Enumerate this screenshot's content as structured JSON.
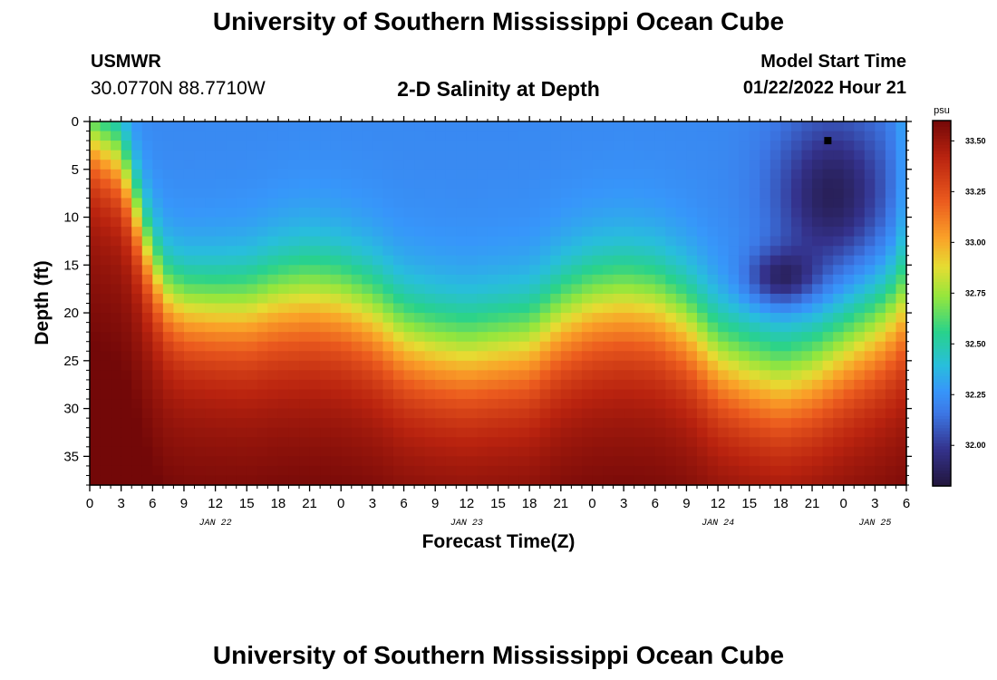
{
  "header": {
    "title": "University of Southern Mississippi Ocean Cube",
    "station": "USMWR",
    "coordinates": "30.0770N  88.7710W",
    "subtitle": "2-D Salinity at Depth",
    "model_start_label": "Model Start Time",
    "model_start_value": "01/22/2022 Hour 21"
  },
  "footer": {
    "title": "University of Southern Mississippi Ocean Cube"
  },
  "chart_data": {
    "type": "heatmap",
    "title": "2-D Salinity at Depth",
    "xlabel": "Forecast Time(Z)",
    "ylabel": "Depth (ft)",
    "x_unit": "hours from Jan 22 00Z",
    "xlim": [
      0,
      78
    ],
    "ylim": [
      0,
      38
    ],
    "y_inverted": true,
    "x_ticks": [
      0,
      3,
      6,
      9,
      12,
      15,
      18,
      21,
      24,
      27,
      30,
      33,
      36,
      39,
      42,
      45,
      48,
      51,
      54,
      57,
      60,
      63,
      66,
      69,
      72,
      75,
      78
    ],
    "x_tick_labels": [
      "0",
      "3",
      "6",
      "9",
      "12",
      "15",
      "18",
      "21",
      "0",
      "3",
      "6",
      "9",
      "12",
      "15",
      "18",
      "21",
      "0",
      "3",
      "6",
      "9",
      "12",
      "15",
      "18",
      "21",
      "0",
      "3",
      "6"
    ],
    "y_ticks": [
      0,
      5,
      10,
      15,
      20,
      25,
      30,
      35
    ],
    "y_tick_labels": [
      "0",
      "5",
      "10",
      "15",
      "20",
      "25",
      "30",
      "35"
    ],
    "date_labels": [
      {
        "hour": 12,
        "text": "JAN 22"
      },
      {
        "hour": 36,
        "text": "JAN 23"
      },
      {
        "hour": 60,
        "text": "JAN 24"
      },
      {
        "hour": 75,
        "text": "JAN 25"
      }
    ],
    "colorbar": {
      "unit": "psu",
      "vmin": 31.8,
      "vmax": 33.6,
      "ticks": [
        32.0,
        32.25,
        32.5,
        32.75,
        33.0,
        33.25,
        33.5
      ],
      "tick_labels": [
        "32.00",
        "32.25",
        "32.50",
        "32.75",
        "33.00",
        "33.25",
        "33.50"
      ]
    },
    "field_description": {
      "surface_layer_salinity": 32.22,
      "bottom_layer_salinity": 33.45,
      "fresh_pocket_min": 31.85,
      "halocline_depth_by_hour": [
        [
          0,
          1.5
        ],
        [
          3,
          4
        ],
        [
          6,
          15
        ],
        [
          7.5,
          18
        ],
        [
          9,
          19.2
        ],
        [
          12,
          19.5
        ],
        [
          15,
          19.5
        ],
        [
          18,
          18.5
        ],
        [
          21,
          18
        ],
        [
          24,
          18.5
        ],
        [
          27,
          20
        ],
        [
          30,
          22.5
        ],
        [
          33,
          23.5
        ],
        [
          36,
          24
        ],
        [
          39,
          23.5
        ],
        [
          42,
          23
        ],
        [
          45,
          20.5
        ],
        [
          48,
          19
        ],
        [
          51,
          18.5
        ],
        [
          54,
          19
        ],
        [
          57,
          21
        ],
        [
          60,
          24.5
        ],
        [
          63,
          26
        ],
        [
          66,
          27
        ],
        [
          69,
          26
        ],
        [
          72,
          24
        ],
        [
          75,
          22
        ],
        [
          78,
          19.5
        ]
      ]
    },
    "marker": {
      "hour": 70.5,
      "depth": 2
    }
  }
}
